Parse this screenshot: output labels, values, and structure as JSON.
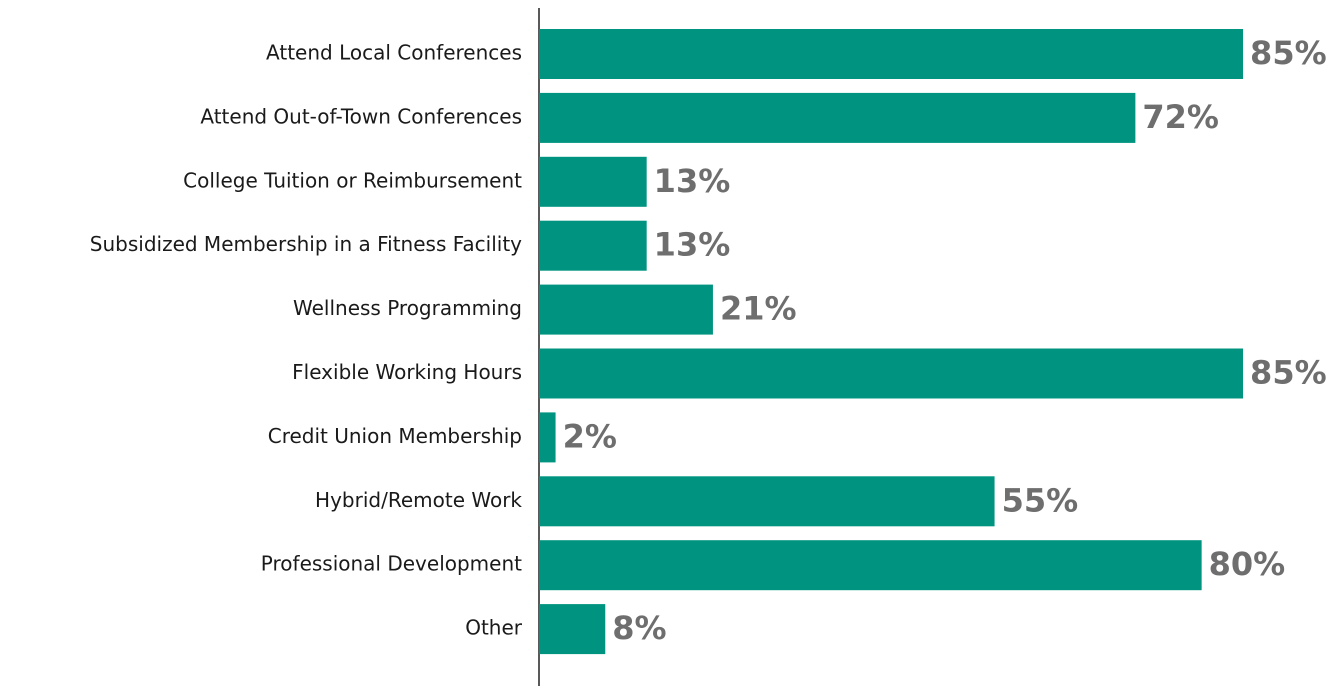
{
  "chart_data": {
    "type": "bar",
    "orientation": "horizontal",
    "categories": [
      "Attend Local Conferences",
      "Attend Out-of-Town Conferences",
      "College Tuition or Reimbursement",
      "Subsidized Membership in a Fitness Facility",
      "Wellness Programming",
      "Flexible Working Hours",
      "Credit Union Membership",
      "Hybrid/Remote Work",
      "Professional Development",
      "Other"
    ],
    "values": [
      85,
      72,
      13,
      13,
      21,
      85,
      2,
      55,
      80,
      8
    ],
    "value_labels": [
      "85%",
      "72%",
      "13%",
      "13%",
      "21%",
      "85%",
      "2%",
      "55%",
      "80%",
      "8%"
    ],
    "color": "#009480"
  }
}
